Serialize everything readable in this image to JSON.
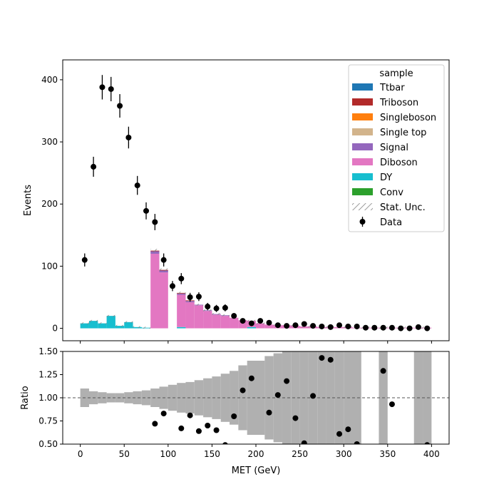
{
  "chart_data": [
    {
      "type": "bar",
      "panel": "main",
      "xlabel": "",
      "ylabel": "Events",
      "xlim": [
        -20,
        420
      ],
      "ylim": [
        -20,
        432
      ],
      "xticks": [
        0,
        50,
        100,
        150,
        200,
        250,
        300,
        350,
        400
      ],
      "yticks": [
        0,
        100,
        200,
        300,
        400
      ],
      "ytick_labels": [
        "0",
        "100",
        "200",
        "300",
        "400"
      ],
      "bin_width": 10,
      "legend": {
        "title": "sample",
        "position": "top-right",
        "entries": [
          {
            "label": "Ttbar",
            "color": "#1f77b4",
            "kind": "patch"
          },
          {
            "label": "Triboson",
            "color": "#b22a2a",
            "kind": "patch"
          },
          {
            "label": "Singleboson",
            "color": "#ff7f0e",
            "kind": "patch"
          },
          {
            "label": "Single top",
            "color": "#d2b48c",
            "kind": "patch"
          },
          {
            "label": "Signal",
            "color": "#9467bd",
            "kind": "patch"
          },
          {
            "label": "Diboson",
            "color": "#e377c2",
            "kind": "patch"
          },
          {
            "label": "DY",
            "color": "#17becf",
            "kind": "patch"
          },
          {
            "label": "Conv",
            "color": "#2ca02c",
            "kind": "patch"
          },
          {
            "label": "Stat. Unc.",
            "color": "#808080",
            "kind": "hatch"
          },
          {
            "label": "Data",
            "color": "#000000",
            "kind": "marker"
          }
        ]
      },
      "stack": {
        "bin_edges": [
          0,
          10,
          20,
          30,
          40,
          50,
          60,
          70,
          80,
          90,
          100,
          110,
          120,
          130,
          140,
          150,
          160,
          170,
          180,
          190,
          200,
          210,
          220,
          230,
          240,
          250,
          260,
          270,
          280,
          290,
          300,
          310,
          320,
          330,
          340,
          350,
          360,
          370,
          380,
          390,
          400
        ],
        "series": [
          {
            "name": "DY",
            "color": "#17becf",
            "values": [
              8,
              12,
              8,
              20,
              4,
              10,
              2,
              1,
              0,
              0,
              0,
              2,
              0,
              0,
              0,
              0,
              0,
              0,
              0,
              2,
              0,
              0,
              0,
              0,
              0,
              0,
              0,
              0,
              0,
              0,
              0,
              0,
              0,
              0,
              0,
              0,
              0,
              0,
              0,
              0
            ]
          },
          {
            "name": "Diboson",
            "color": "#e377c2",
            "values": [
              0,
              0,
              0,
              0,
              0,
              0,
              0,
              0,
              120,
              90,
              0,
              52,
              42,
              37,
              28,
              22,
              20,
              17,
              13,
              10,
              8,
              6,
              5,
              5,
              4,
              3,
              3,
              2,
              2,
              2,
              2,
              1,
              1,
              1,
              1,
              1,
              1,
              1,
              1,
              1
            ]
          },
          {
            "name": "Signal",
            "color": "#9467bd",
            "values": [
              0,
              0,
              0,
              0,
              0,
              0,
              0,
              0,
              4,
              3,
              0,
              2,
              2,
              1,
              1,
              1,
              1,
              0,
              0,
              0,
              0,
              0,
              0,
              0,
              0,
              0,
              0,
              0,
              0,
              0,
              0,
              0,
              0,
              0,
              0,
              0,
              0,
              0,
              0,
              0
            ]
          },
          {
            "name": "Triboson",
            "color": "#b22a2a",
            "values": [
              0,
              0,
              0,
              0,
              0,
              0,
              0,
              0,
              1,
              1,
              0,
              1,
              1,
              0,
              0,
              0,
              0,
              0,
              0,
              0,
              0,
              0,
              0,
              0,
              0,
              0,
              0,
              0,
              0,
              0,
              0,
              0,
              0,
              0,
              0,
              0,
              0,
              0,
              0,
              0
            ]
          }
        ]
      },
      "data_points": {
        "name": "Data",
        "x": [
          5,
          15,
          25,
          35,
          45,
          55,
          65,
          75,
          85,
          95,
          105,
          115,
          125,
          135,
          145,
          155,
          165,
          175,
          185,
          195,
          205,
          215,
          225,
          235,
          245,
          255,
          265,
          275,
          285,
          295,
          305,
          315,
          325,
          335,
          345,
          355,
          365,
          375,
          385,
          395
        ],
        "y": [
          110,
          260,
          388,
          385,
          358,
          307,
          230,
          189,
          171,
          110,
          68,
          80,
          50,
          51,
          35,
          32,
          33,
          20,
          12,
          8,
          12,
          9,
          5,
          4,
          5,
          7,
          4,
          3,
          2,
          5,
          3,
          3,
          1,
          1,
          1,
          1,
          0,
          0,
          2,
          0
        ],
        "yerr": [
          10.5,
          16.1,
          19.7,
          19.6,
          18.9,
          17.5,
          15.2,
          13.7,
          13.1,
          10.5,
          8.2,
          8.9,
          7.1,
          7.1,
          5.9,
          5.7,
          5.7,
          4.5,
          3.5,
          2.8,
          3.5,
          3,
          2.2,
          2,
          2.2,
          2.6,
          2,
          1.7,
          1.4,
          2.2,
          1.7,
          1.7,
          1,
          1,
          1,
          1,
          0,
          0,
          1.4,
          0
        ]
      }
    },
    {
      "type": "bar",
      "panel": "ratio",
      "xlabel": "MET (GeV)",
      "ylabel": "Ratio",
      "xlim": [
        -20,
        420
      ],
      "ylim": [
        0.5,
        1.5
      ],
      "xticks": [
        0,
        50,
        100,
        150,
        200,
        250,
        300,
        350,
        400
      ],
      "xtick_labels": [
        "0",
        "50",
        "100",
        "150",
        "200",
        "250",
        "300",
        "350",
        "400"
      ],
      "yticks": [
        0.5,
        0.75,
        1.0,
        1.25,
        1.5
      ],
      "ytick_labels": [
        "0.50",
        "0.75",
        "1.00",
        "1.25",
        "1.50"
      ],
      "reference_line": 1.0,
      "uncertainty_band": {
        "color": "#b0b0b0",
        "bin_edges": [
          0,
          10,
          20,
          30,
          40,
          50,
          60,
          70,
          80,
          90,
          100,
          110,
          120,
          130,
          140,
          150,
          160,
          170,
          180,
          190,
          200,
          210,
          220,
          230,
          240,
          250,
          260,
          270,
          280,
          290,
          300,
          310,
          320,
          330,
          340,
          350,
          360,
          370,
          380,
          390,
          400
        ],
        "half_width": [
          0.1,
          0.07,
          0.06,
          0.05,
          0.05,
          0.06,
          0.07,
          0.08,
          0.1,
          0.12,
          0.14,
          0.16,
          0.17,
          0.19,
          0.21,
          0.23,
          0.26,
          0.29,
          0.35,
          0.4,
          0.4,
          0.45,
          0.48,
          0.5,
          0.5,
          0.55,
          0.5,
          0.55,
          0.6,
          0.6,
          0.6,
          0.6,
          0,
          0,
          0.6,
          0,
          0,
          0,
          0.6,
          0.6
        ]
      },
      "points": {
        "x": [
          85,
          95,
          115,
          125,
          135,
          145,
          155,
          165,
          175,
          185,
          195,
          215,
          225,
          235,
          245,
          255,
          265,
          275,
          285,
          295,
          305,
          315,
          345,
          355,
          395
        ],
        "y": [
          0.72,
          0.83,
          0.67,
          0.81,
          0.64,
          0.7,
          0.65,
          0.49,
          0.8,
          1.08,
          1.21,
          0.84,
          1.03,
          1.18,
          0.78,
          0.51,
          1.02,
          1.43,
          1.41,
          0.61,
          0.66,
          0.5,
          1.29,
          0.93,
          0.49
        ]
      }
    }
  ]
}
